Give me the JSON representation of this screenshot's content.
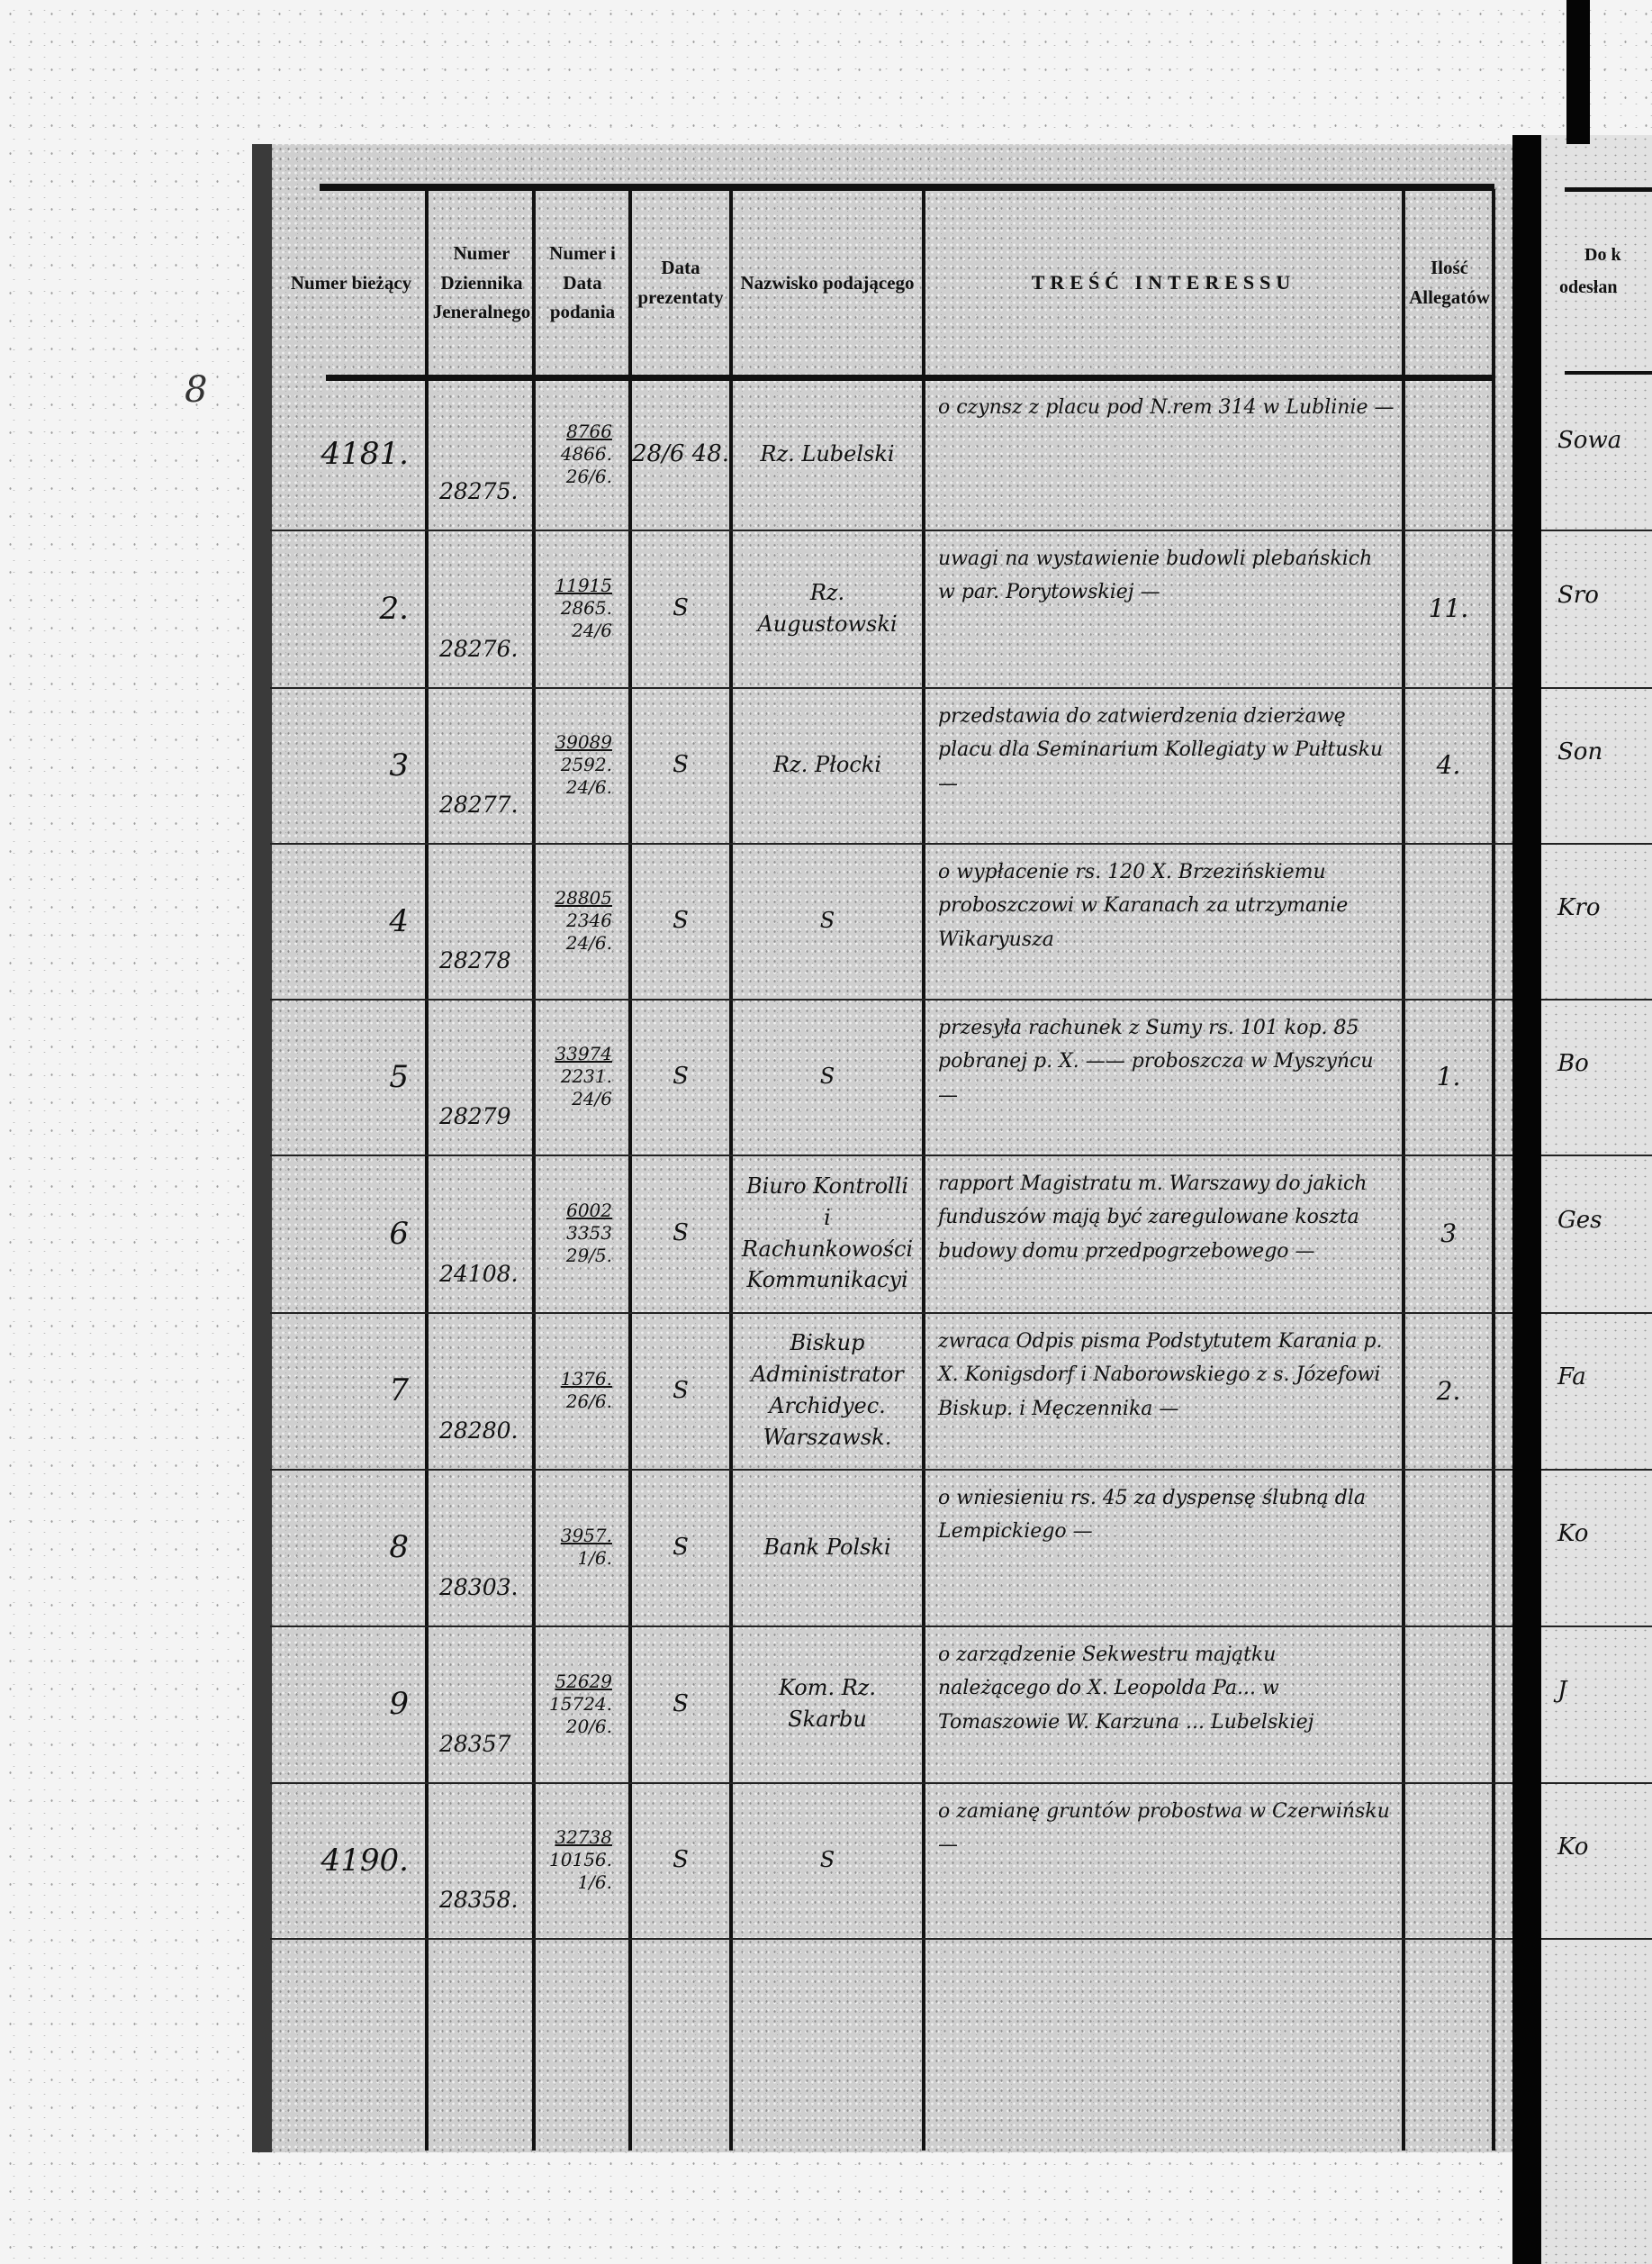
{
  "header": {
    "columns": [
      "Numer bieżący",
      "Numer Dziennika Jeneralnego",
      "Numer i Data podania",
      "Data prezentaty",
      "Nazwisko podającego",
      "TREŚĆ INTERESSU",
      "Ilość Allegatów"
    ],
    "right_page_fragments": [
      "Do k",
      "odesłan"
    ]
  },
  "margin_mark": "8",
  "rows": [
    {
      "numer": "4181.",
      "dziennik": "28275.",
      "podanie": [
        "8766",
        "4866.",
        "26/6."
      ],
      "prezentata": "28/6 48.",
      "nazwisko": "Rz. Lubelski",
      "tresc": "o czynsz z placu pod N.rem 314 w Lublinie —",
      "allegaty": ""
    },
    {
      "numer": "2.",
      "dziennik": "28276.",
      "podanie": [
        "11915",
        "2865.",
        "24/6"
      ],
      "prezentata": "S",
      "nazwisko": "Rz. Augustowski",
      "tresc": "uwagi na wystawienie budowli plebańskich w par. Porytowskiej —",
      "allegaty": "11."
    },
    {
      "numer": "3",
      "dziennik": "28277.",
      "podanie": [
        "39089",
        "2592.",
        "24/6."
      ],
      "prezentata": "S",
      "nazwisko": "Rz. Płocki",
      "tresc": "przedstawia do zatwierdzenia dzierżawę placu dla Seminarium Kollegiaty w Pułtusku —",
      "allegaty": "4."
    },
    {
      "numer": "4",
      "dziennik": "28278",
      "podanie": [
        "28805",
        "2346",
        "24/6."
      ],
      "prezentata": "S",
      "nazwisko": "S",
      "tresc": "o wypłacenie rs. 120 X. Brzezińskiemu proboszczowi w Karanach za utrzymanie Wikaryusza",
      "allegaty": ""
    },
    {
      "numer": "5",
      "dziennik": "28279",
      "podanie": [
        "33974",
        "2231.",
        "24/6"
      ],
      "prezentata": "S",
      "nazwisko": "S",
      "tresc": "przesyła rachunek z Sumy rs. 101 kop. 85 pobranej p. X. —— proboszcza w Myszyńcu —",
      "allegaty": "1."
    },
    {
      "numer": "6",
      "dziennik": "24108.",
      "podanie": [
        "6002",
        "3353",
        "29/5."
      ],
      "prezentata": "S",
      "nazwisko": "Biuro Kontrolli i Rachunkowości Kommunikacyi",
      "tresc": "rapport Magistratu m. Warszawy do jakich funduszów mają być zaregulowane koszta budowy domu przedpogrzebowego —",
      "allegaty": "3"
    },
    {
      "numer": "7",
      "dziennik": "28280.",
      "podanie": [
        "1376.",
        "26/6."
      ],
      "prezentata": "S",
      "nazwisko": "Biskup Administrator Archidyec. Warszawsk.",
      "tresc": "zwraca Odpis pisma Podstytutem Karania p. X. Konigsdorf i Naborowskiego z s. Józefowi Biskup. i Męczennika —",
      "allegaty": "2."
    },
    {
      "numer": "8",
      "dziennik": "28303.",
      "podanie": [
        "3957.",
        "1/6."
      ],
      "prezentata": "S",
      "nazwisko": "Bank Polski",
      "tresc": "o wniesieniu rs. 45 za dyspensę ślubną dla Lempickiego —",
      "allegaty": ""
    },
    {
      "numer": "9",
      "dziennik": "28357",
      "podanie": [
        "52629",
        "15724.",
        "20/6."
      ],
      "prezentata": "S",
      "nazwisko": "Kom. Rz. Skarbu",
      "tresc": "o zarządzenie Sekwestru majątku należącego do X. Leopolda Pa... w Tomaszowie W. Karzuna ... Lubelskiej",
      "allegaty": ""
    },
    {
      "numer": "4190.",
      "dziennik": "28358.",
      "podanie": [
        "32738",
        "10156.",
        "1/6."
      ],
      "prezentata": "S",
      "nazwisko": "S",
      "tresc": "o zamianę gruntów probostwa w Czerwińsku —",
      "allegaty": ""
    }
  ],
  "right_page_entries": [
    "Sowa",
    "Sro",
    "Son",
    "Kro",
    "Bo",
    "Ges",
    "Fa",
    "Ko",
    "J",
    "Ko"
  ]
}
